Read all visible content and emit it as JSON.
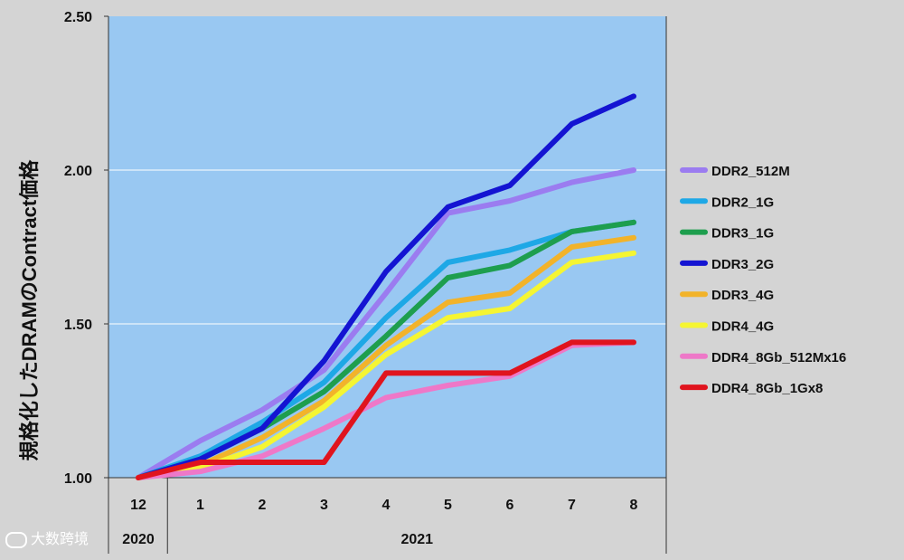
{
  "chart_data": {
    "type": "line",
    "ylabel": "規格化したDRAMのContract価格",
    "ylim": [
      1.0,
      2.5
    ],
    "yticks": [
      "1.00",
      "1.50",
      "2.00",
      "2.50"
    ],
    "ytick_values": [
      1.0,
      1.5,
      2.0,
      2.5
    ],
    "grid": true,
    "legend_position": "right",
    "x": [
      "12",
      "1",
      "2",
      "3",
      "4",
      "5",
      "6",
      "7",
      "8"
    ],
    "year_labels": [
      {
        "label": "2020",
        "from": 0,
        "to": 0
      },
      {
        "label": "2021",
        "from": 1,
        "to": 8
      }
    ],
    "plot_background": "#99c8f2",
    "series": [
      {
        "name": "DDR2_512M",
        "color": "#9b7cf0",
        "values": [
          1.0,
          1.12,
          1.22,
          1.35,
          1.6,
          1.86,
          1.9,
          1.96,
          2.0
        ]
      },
      {
        "name": "DDR2_1G",
        "color": "#1ea8e6",
        "values": [
          1.0,
          1.07,
          1.18,
          1.31,
          1.52,
          1.7,
          1.74,
          1.8,
          1.83
        ]
      },
      {
        "name": "DDR3_1G",
        "color": "#1e9e4e",
        "values": [
          1.0,
          1.06,
          1.16,
          1.28,
          1.46,
          1.65,
          1.69,
          1.8,
          1.83
        ]
      },
      {
        "name": "DDR3_2G",
        "color": "#1414d2",
        "values": [
          1.0,
          1.06,
          1.16,
          1.38,
          1.67,
          1.88,
          1.95,
          2.15,
          2.24
        ]
      },
      {
        "name": "DDR3_4G",
        "color": "#f2b32a",
        "values": [
          1.0,
          1.04,
          1.13,
          1.25,
          1.43,
          1.57,
          1.6,
          1.75,
          1.78
        ]
      },
      {
        "name": "DDR4_4G",
        "color": "#f5f532",
        "values": [
          1.0,
          1.03,
          1.1,
          1.23,
          1.4,
          1.52,
          1.55,
          1.7,
          1.73
        ]
      },
      {
        "name": "DDR4_8Gb_512Mx16",
        "color": "#ee78c8",
        "values": [
          1.0,
          1.02,
          1.07,
          1.16,
          1.26,
          1.3,
          1.33,
          1.43,
          1.44
        ]
      },
      {
        "name": "DDR4_8Gb_1Gx8",
        "color": "#e0141e",
        "values": [
          1.0,
          1.05,
          1.05,
          1.05,
          1.34,
          1.34,
          1.34,
          1.44,
          1.44
        ]
      }
    ]
  },
  "watermark": {
    "text": "大数跨境"
  }
}
